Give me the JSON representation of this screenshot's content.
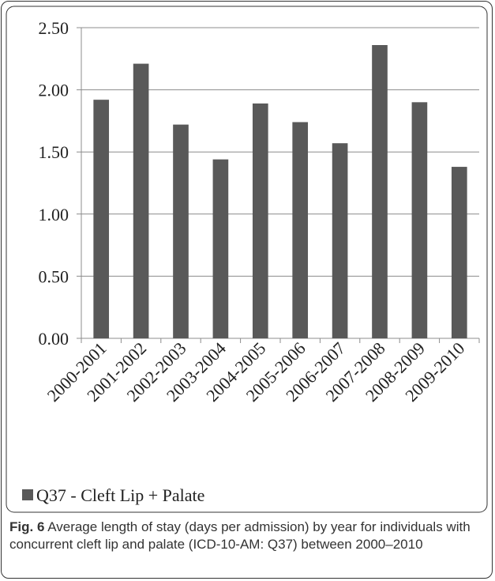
{
  "chart_data": {
    "type": "bar",
    "categories": [
      "2000-2001",
      "2001-2002",
      "2002-2003",
      "2003-2004",
      "2004-2005",
      "2005-2006",
      "2006-2007",
      "2007-2008",
      "2008-2009",
      "2009-2010"
    ],
    "series": [
      {
        "name": "Q37 - Cleft Lip + Palate",
        "color": "#595959",
        "values": [
          1.92,
          2.21,
          1.72,
          1.44,
          1.89,
          1.74,
          1.57,
          2.36,
          1.9,
          1.38
        ]
      }
    ],
    "ylim": [
      0,
      2.5
    ],
    "yticks": [
      {
        "value": 0,
        "label": "0.00"
      },
      {
        "value": 0.5,
        "label": "0.50"
      },
      {
        "value": 1,
        "label": "1.00"
      },
      {
        "value": 1.5,
        "label": "1.50"
      },
      {
        "value": 2,
        "label": "2.00"
      },
      {
        "value": 2.5,
        "label": "2.50"
      }
    ],
    "grid": true,
    "legend": "bottom-left"
  },
  "caption": {
    "label": "Fig. 6",
    "text": "Average length of stay (days per admission) by year for individuals with concurrent cleft lip and palate (ICD-10-AM: Q37) between 2000–2010"
  }
}
